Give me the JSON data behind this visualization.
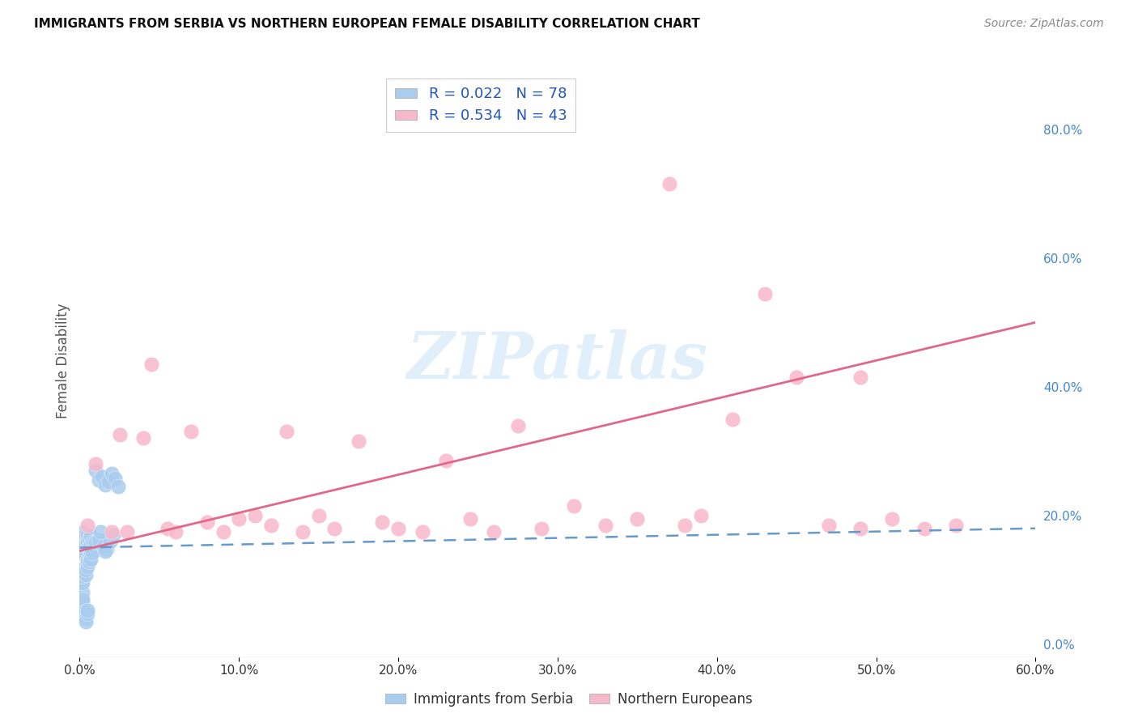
{
  "title": "IMMIGRANTS FROM SERBIA VS NORTHERN EUROPEAN FEMALE DISABILITY CORRELATION CHART",
  "source": "Source: ZipAtlas.com",
  "ylabel": "Female Disability",
  "xlim": [
    0.0,
    0.6
  ],
  "ylim": [
    -0.02,
    0.9
  ],
  "xticks": [
    0.0,
    0.1,
    0.2,
    0.3,
    0.4,
    0.5,
    0.6
  ],
  "yticks_right": [
    0.0,
    0.2,
    0.4,
    0.6,
    0.8
  ],
  "series1_name": "Immigrants from Serbia",
  "series1_R": "0.022",
  "series1_N": "78",
  "series1_scatter_color": "#aaccee",
  "series1_line_color": "#6699cc",
  "series2_name": "Northern Europeans",
  "series2_R": "0.534",
  "series2_N": "43",
  "series2_scatter_color": "#f8b8cc",
  "series2_line_color": "#e06888",
  "watermark_text": "ZIPatlas",
  "background_color": "#ffffff",
  "grid_color": "#e0e0e0",
  "series1_x": [
    0.001,
    0.001,
    0.001,
    0.002,
    0.002,
    0.002,
    0.002,
    0.003,
    0.003,
    0.003,
    0.003,
    0.003,
    0.003,
    0.004,
    0.004,
    0.004,
    0.004,
    0.004,
    0.005,
    0.005,
    0.005,
    0.005,
    0.006,
    0.006,
    0.006,
    0.007,
    0.007,
    0.008,
    0.008,
    0.009,
    0.001,
    0.001,
    0.002,
    0.002,
    0.002,
    0.003,
    0.003,
    0.003,
    0.003,
    0.004,
    0.004,
    0.004,
    0.005,
    0.005,
    0.005,
    0.006,
    0.006,
    0.007,
    0.007,
    0.008,
    0.001,
    0.001,
    0.002,
    0.002,
    0.003,
    0.003,
    0.004,
    0.004,
    0.005,
    0.005,
    0.01,
    0.012,
    0.014,
    0.016,
    0.018,
    0.02,
    0.022,
    0.024,
    0.014,
    0.018,
    0.01,
    0.012,
    0.015,
    0.017,
    0.019,
    0.021,
    0.013,
    0.016
  ],
  "series1_y": [
    0.155,
    0.165,
    0.17,
    0.15,
    0.16,
    0.175,
    0.145,
    0.148,
    0.152,
    0.158,
    0.162,
    0.14,
    0.168,
    0.143,
    0.147,
    0.153,
    0.157,
    0.138,
    0.15,
    0.16,
    0.17,
    0.13,
    0.148,
    0.152,
    0.165,
    0.155,
    0.168,
    0.16,
    0.145,
    0.158,
    0.1,
    0.09,
    0.08,
    0.095,
    0.105,
    0.11,
    0.115,
    0.118,
    0.112,
    0.108,
    0.122,
    0.116,
    0.125,
    0.12,
    0.13,
    0.135,
    0.128,
    0.14,
    0.132,
    0.142,
    0.055,
    0.06,
    0.065,
    0.07,
    0.05,
    0.045,
    0.04,
    0.035,
    0.048,
    0.052,
    0.27,
    0.255,
    0.26,
    0.248,
    0.252,
    0.265,
    0.258,
    0.245,
    0.155,
    0.165,
    0.158,
    0.162,
    0.152,
    0.148,
    0.16,
    0.17,
    0.175,
    0.145
  ],
  "series2_x": [
    0.005,
    0.01,
    0.02,
    0.025,
    0.03,
    0.04,
    0.045,
    0.055,
    0.06,
    0.07,
    0.08,
    0.09,
    0.1,
    0.11,
    0.12,
    0.13,
    0.14,
    0.15,
    0.16,
    0.175,
    0.19,
    0.2,
    0.215,
    0.23,
    0.245,
    0.26,
    0.275,
    0.29,
    0.31,
    0.33,
    0.35,
    0.37,
    0.39,
    0.41,
    0.43,
    0.45,
    0.47,
    0.49,
    0.51,
    0.53,
    0.55,
    0.49,
    0.38
  ],
  "series2_y": [
    0.185,
    0.28,
    0.175,
    0.325,
    0.175,
    0.32,
    0.435,
    0.18,
    0.175,
    0.33,
    0.19,
    0.175,
    0.195,
    0.2,
    0.185,
    0.33,
    0.175,
    0.2,
    0.18,
    0.315,
    0.19,
    0.18,
    0.175,
    0.285,
    0.195,
    0.175,
    0.34,
    0.18,
    0.215,
    0.185,
    0.195,
    0.715,
    0.2,
    0.35,
    0.545,
    0.415,
    0.185,
    0.18,
    0.195,
    0.18,
    0.185,
    0.415,
    0.185
  ],
  "s2_line_start_x": 0.0,
  "s2_line_start_y": 0.145,
  "s2_line_end_x": 0.6,
  "s2_line_end_y": 0.5,
  "s1_line_start_x": 0.0,
  "s1_line_start_y": 0.15,
  "s1_line_end_x": 0.6,
  "s1_line_end_y": 0.18
}
